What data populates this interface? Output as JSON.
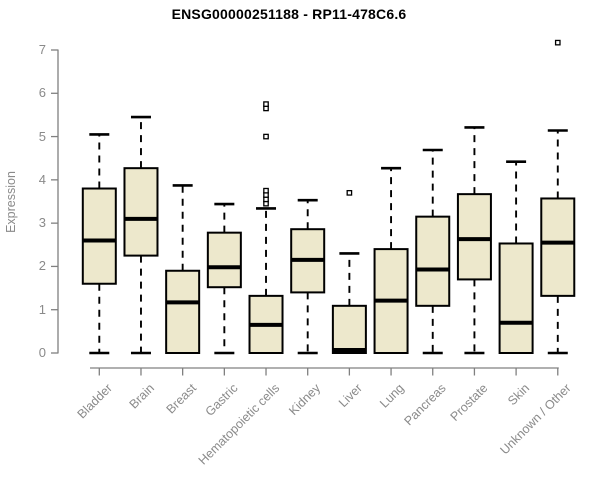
{
  "chart_data": {
    "type": "boxplot",
    "title": "ENSG00000251188 - RP11-478C6.6",
    "xlabel": "",
    "ylabel": "Expression",
    "ylim": [
      0,
      7
    ],
    "yticks": [
      0,
      1,
      2,
      3,
      4,
      5,
      6,
      7
    ],
    "grid": "off",
    "legend": "none",
    "categories": [
      "Bladder",
      "Brain",
      "Breast",
      "Gastric",
      "Hematopoietic cells",
      "Kidney",
      "Liver",
      "Lung",
      "Pancreas",
      "Prostate",
      "Skin",
      "Unknown / Other"
    ],
    "boxes": [
      {
        "category": "Bladder",
        "min": 0,
        "q1": 1.6,
        "median": 2.6,
        "q3": 3.8,
        "max": 5.05,
        "outliers": []
      },
      {
        "category": "Brain",
        "min": 0,
        "q1": 2.25,
        "median": 3.1,
        "q3": 4.27,
        "max": 5.45,
        "outliers": []
      },
      {
        "category": "Breast",
        "min": 0,
        "q1": 0,
        "median": 1.17,
        "q3": 1.9,
        "max": 3.87,
        "outliers": []
      },
      {
        "category": "Gastric",
        "min": 0,
        "q1": 1.52,
        "median": 1.98,
        "q3": 2.78,
        "max": 3.44,
        "outliers": []
      },
      {
        "category": "Hematopoietic cells",
        "min": 0,
        "q1": 0,
        "median": 0.65,
        "q3": 1.32,
        "max": 3.34,
        "outliers": [
          3.45,
          3.55,
          3.65,
          3.75,
          5.0,
          5.65,
          5.75
        ]
      },
      {
        "category": "Kidney",
        "min": 0,
        "q1": 1.4,
        "median": 2.15,
        "q3": 2.86,
        "max": 3.53,
        "outliers": []
      },
      {
        "category": "Liver",
        "min": 0,
        "q1": 0,
        "median": 0.07,
        "q3": 1.09,
        "max": 2.3,
        "outliers": [
          3.7
        ]
      },
      {
        "category": "Lung",
        "min": 0,
        "q1": 0,
        "median": 1.21,
        "q3": 2.4,
        "max": 4.27,
        "outliers": []
      },
      {
        "category": "Pancreas",
        "min": 0,
        "q1": 1.09,
        "median": 1.93,
        "q3": 3.15,
        "max": 4.69,
        "outliers": []
      },
      {
        "category": "Prostate",
        "min": 0,
        "q1": 1.7,
        "median": 2.63,
        "q3": 3.67,
        "max": 5.21,
        "outliers": []
      },
      {
        "category": "Skin",
        "min": 0,
        "q1": 0,
        "median": 0.7,
        "q3": 2.53,
        "max": 4.42,
        "outliers": []
      },
      {
        "category": "Unknown / Other",
        "min": 0,
        "q1": 1.32,
        "median": 2.55,
        "q3": 3.57,
        "max": 5.14,
        "outliers": [
          7.17
        ]
      }
    ],
    "colors": {
      "box_fill": "#EDE8CC",
      "box_stroke": "#000000",
      "median": "#000000",
      "whisker": "#000000",
      "outlier_stroke": "#000000",
      "outlier_fill": "#ffffff",
      "axis_line": "#808080",
      "axis_text": "#8a8a8a",
      "title_text": "#000000",
      "background": "#ffffff"
    }
  }
}
